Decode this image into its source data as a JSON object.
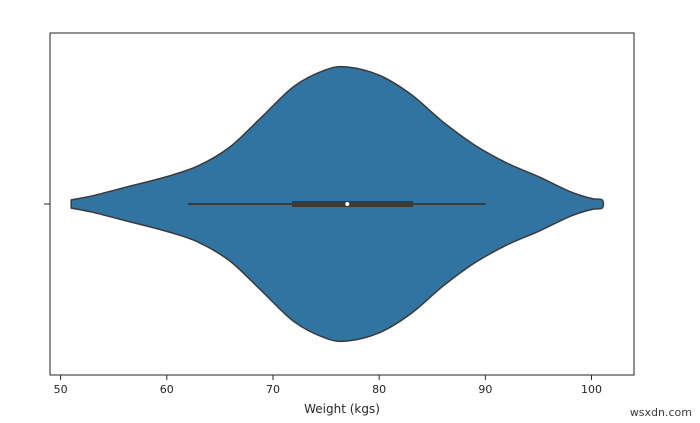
{
  "chart_data": {
    "type": "violin",
    "orientation": "horizontal",
    "xlabel": "Weight (kgs)",
    "ylabel": "",
    "xlim": [
      49,
      104
    ],
    "xticks": [
      50,
      60,
      70,
      80,
      90,
      100
    ],
    "grid": false,
    "fill_color": "#3274a1",
    "edge_color": "#3a3a3a",
    "density_profile": [
      {
        "x": 51,
        "d": 0.03
      },
      {
        "x": 53,
        "d": 0.06
      },
      {
        "x": 56,
        "d": 0.12
      },
      {
        "x": 60,
        "d": 0.2
      },
      {
        "x": 63,
        "d": 0.28
      },
      {
        "x": 66,
        "d": 0.42
      },
      {
        "x": 69,
        "d": 0.64
      },
      {
        "x": 72,
        "d": 0.86
      },
      {
        "x": 75,
        "d": 0.98
      },
      {
        "x": 77,
        "d": 1.0
      },
      {
        "x": 80,
        "d": 0.94
      },
      {
        "x": 83,
        "d": 0.8
      },
      {
        "x": 86,
        "d": 0.6
      },
      {
        "x": 89,
        "d": 0.43
      },
      {
        "x": 92,
        "d": 0.3
      },
      {
        "x": 95,
        "d": 0.2
      },
      {
        "x": 98,
        "d": 0.09
      },
      {
        "x": 100,
        "d": 0.04
      },
      {
        "x": 101,
        "d": 0.03
      }
    ],
    "box": {
      "whisker_low": 62,
      "q1": 71.8,
      "median": 77,
      "q3": 83.2,
      "whisker_high": 90
    }
  },
  "watermark": "wsxdn.com"
}
